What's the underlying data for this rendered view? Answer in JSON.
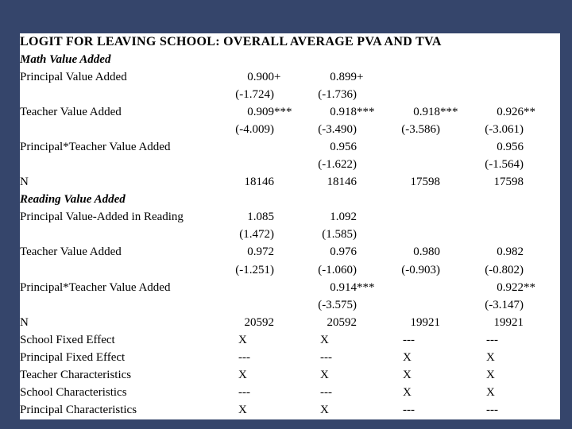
{
  "slide": {
    "background_color": "#35456B",
    "content_background": "#FFFFFF",
    "text_color": "#000000"
  },
  "table": {
    "rows": [
      {
        "type": "title",
        "label": "LOGIT FOR LEAVING SCHOOL:  OVERALL AVERAGE PVA AND TVA"
      },
      {
        "type": "section",
        "label": "Math Value Added"
      },
      {
        "type": "data",
        "label": "Principal Value Added",
        "cells": [
          "0.900",
          "+",
          "0.899",
          "+",
          "",
          "",
          "",
          ""
        ]
      },
      {
        "type": "data",
        "label": "",
        "cells": [
          "(-1.724)",
          "",
          "(-1.736)",
          "",
          "",
          "",
          "",
          ""
        ]
      },
      {
        "type": "data",
        "label": "Teacher Value Added",
        "cells": [
          "0.909",
          "***",
          "0.918",
          "***",
          "0.918",
          "***",
          "0.926",
          "**"
        ]
      },
      {
        "type": "data",
        "label": "",
        "cells": [
          "(-4.009)",
          "",
          "(-3.490)",
          "",
          "(-3.586)",
          "",
          "(-3.061)",
          ""
        ]
      },
      {
        "type": "data",
        "label": "Principal*Teacher Value Added",
        "cells": [
          "",
          "",
          "0.956",
          "",
          "",
          "",
          "0.956",
          ""
        ]
      },
      {
        "type": "data",
        "label": "",
        "cells": [
          "",
          "",
          "(-1.622)",
          "",
          "",
          "",
          "(-1.564)",
          ""
        ]
      },
      {
        "type": "data",
        "label": "N",
        "cells": [
          "18146",
          "",
          "18146",
          "",
          "17598",
          "",
          "17598",
          ""
        ]
      },
      {
        "type": "section",
        "label": "Reading Value Added"
      },
      {
        "type": "data",
        "label": "Principal Value-Added in Reading",
        "cells": [
          "1.085",
          "",
          "1.092",
          "",
          "",
          "",
          "",
          ""
        ]
      },
      {
        "type": "data",
        "label": "",
        "cells": [
          "(1.472)",
          "",
          "(1.585)",
          "",
          "",
          "",
          "",
          ""
        ]
      },
      {
        "type": "data",
        "label": "Teacher Value Added",
        "cells": [
          "0.972",
          "",
          "0.976",
          "",
          "0.980",
          "",
          "0.982",
          ""
        ]
      },
      {
        "type": "data",
        "label": "",
        "cells": [
          "(-1.251)",
          "",
          "(-1.060)",
          "",
          "(-0.903)",
          "",
          "(-0.802)",
          ""
        ]
      },
      {
        "type": "data",
        "label": "Principal*Teacher Value Added",
        "cells": [
          "",
          "",
          "0.914",
          "***",
          "",
          "",
          "0.922",
          "**"
        ]
      },
      {
        "type": "data",
        "label": "",
        "cells": [
          "",
          "",
          "(-3.575)",
          "",
          "",
          "",
          "(-3.147)",
          ""
        ]
      },
      {
        "type": "data",
        "label": "N",
        "cells": [
          "20592",
          "",
          "20592",
          "",
          "19921",
          "",
          "19921",
          ""
        ]
      },
      {
        "type": "flag",
        "label": "School Fixed Effect",
        "cells": [
          "X",
          "",
          "X",
          "",
          "---",
          "",
          "---",
          ""
        ]
      },
      {
        "type": "flag",
        "label": "Principal Fixed Effect",
        "cells": [
          "---",
          "",
          "---",
          "",
          "X",
          "",
          "X",
          ""
        ]
      },
      {
        "type": "flag",
        "label": "Teacher Characteristics",
        "cells": [
          "X",
          "",
          "X",
          "",
          "X",
          "",
          "X",
          ""
        ]
      },
      {
        "type": "flag",
        "label": "School Characteristics",
        "cells": [
          "---",
          "",
          "---",
          "",
          "X",
          "",
          "X",
          ""
        ]
      },
      {
        "type": "flag",
        "label": "Principal Characteristics",
        "cells": [
          "X",
          "",
          "X",
          "",
          "---",
          "",
          "---",
          ""
        ]
      }
    ]
  }
}
